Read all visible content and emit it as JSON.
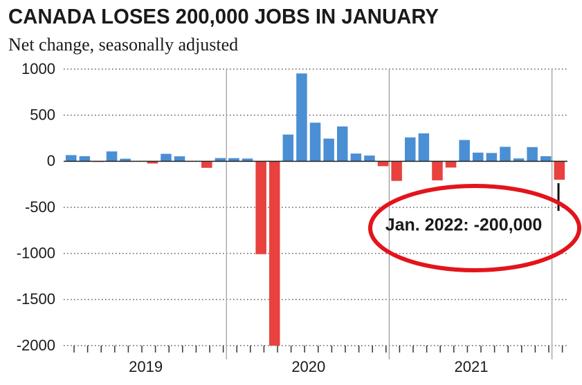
{
  "chart_data": {
    "type": "bar",
    "title": "CANADA LOSES 200,000 JOBS IN JANUARY",
    "subtitle": "Net change, seasonally adjusted",
    "annotation": "Jan. 2022: -200,000",
    "categories": [
      null,
      null,
      null,
      null,
      null,
      null,
      null,
      null,
      null,
      null,
      null,
      null,
      null,
      null,
      null,
      null,
      null,
      null,
      null,
      null,
      null,
      null,
      null,
      null,
      null,
      null,
      null,
      null,
      null,
      null,
      null,
      null,
      null,
      null,
      null,
      null,
      null
    ],
    "year_labels": [
      "2019",
      "2020",
      "2021"
    ],
    "values": [
      67,
      55,
      -7,
      107,
      28,
      -2,
      -24,
      81,
      54,
      2,
      -71,
      35,
      34,
      30,
      -1008,
      -2000,
      290,
      953,
      419,
      246,
      378,
      84,
      62,
      -53,
      -213,
      259,
      303,
      -207,
      -68,
      231,
      94,
      90,
      157,
      31,
      154,
      55,
      -200
    ],
    "colors": {
      "positive": "#4a8fd4",
      "negative": "#e8413e"
    },
    "ylim": [
      -2000,
      1000
    ],
    "yticks": [
      -2000,
      -1500,
      -1000,
      -500,
      0,
      500,
      1000
    ],
    "grid": true
  }
}
